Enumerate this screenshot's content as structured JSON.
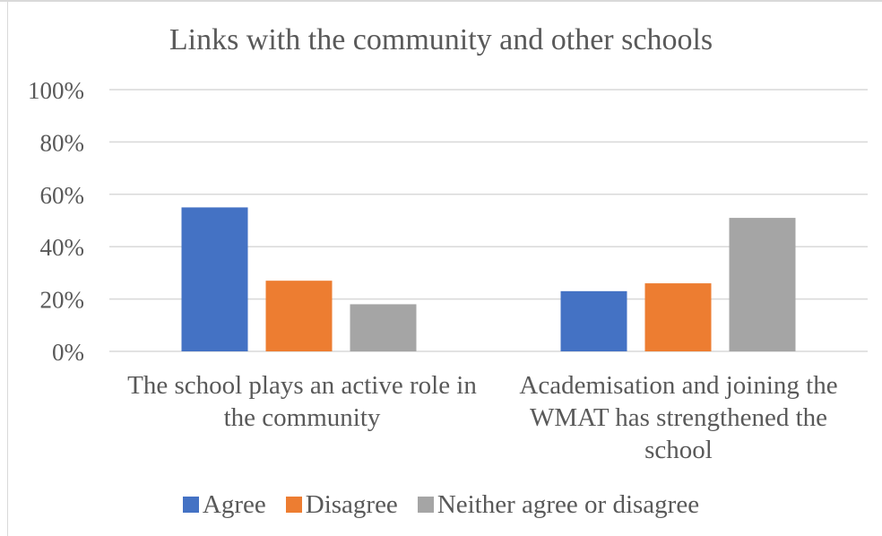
{
  "chart_data": {
    "type": "bar",
    "title": "Links with the community and other schools",
    "categories": [
      [
        "The school plays an active role in",
        "the community"
      ],
      [
        "Academisation and joining the",
        "WMAT has strengthened the",
        "school"
      ]
    ],
    "series": [
      {
        "name": "Agree",
        "color": "#4472c4",
        "values": [
          55,
          23
        ]
      },
      {
        "name": "Disagree",
        "color": "#ed7d31",
        "values": [
          27,
          26
        ]
      },
      {
        "name": "Neither agree or disagree",
        "color": "#a5a5a5",
        "values": [
          18,
          51
        ]
      }
    ],
    "ylim": [
      0,
      100
    ],
    "y_ticks": [
      "0%",
      "20%",
      "40%",
      "60%",
      "80%",
      "100%"
    ],
    "y_tick_values": [
      0,
      20,
      40,
      60,
      80,
      100
    ],
    "grid": true,
    "legend_position": "bottom",
    "xlabel": "",
    "ylabel": ""
  }
}
